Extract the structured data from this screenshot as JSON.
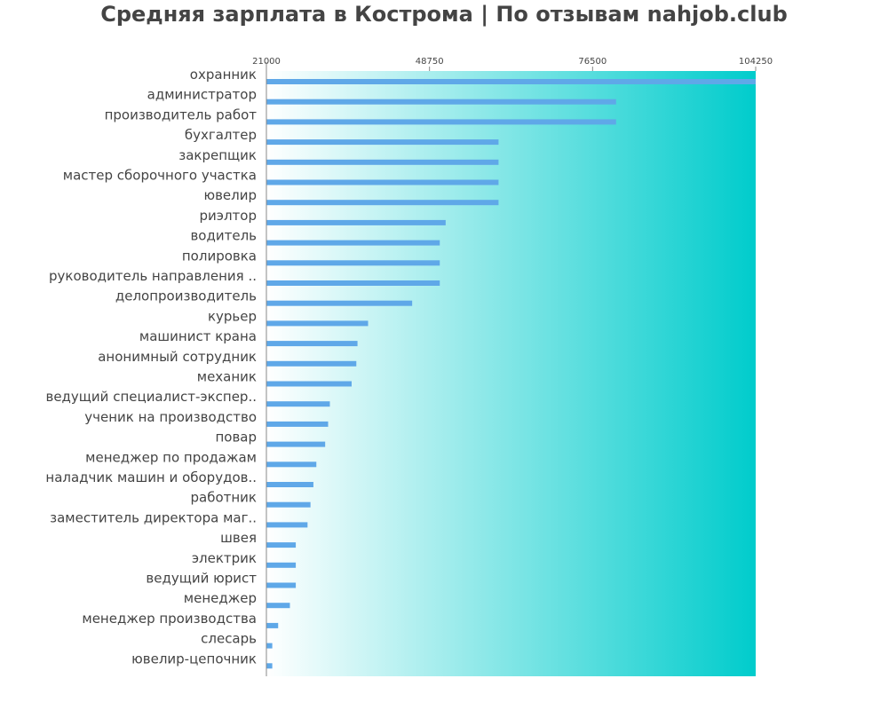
{
  "chart_data": {
    "type": "bar",
    "orientation": "horizontal",
    "title": "Средняя зарплата в Кострома | По отзывам nahjob.club",
    "xlabel": "",
    "ylabel": "",
    "xlim": [
      21000,
      104250
    ],
    "x_ticks": [
      "21000",
      "48750",
      "76500",
      "104250"
    ],
    "grid": false,
    "legend": "none",
    "bar_color": "#5fa8e8",
    "background_gradient": [
      "#ffffff",
      "#00cccc"
    ],
    "categories": [
      "охранник",
      "администратор",
      "производитель работ",
      "бухгалтер",
      "закрепщик",
      "мастер сборочного участка",
      "ювелир",
      "риэлтор",
      "водитель",
      "полировка",
      "руководитель направления ..",
      "делопроизводитель",
      "курьер",
      "машинист крана",
      "анонимный сотрудник",
      "механик",
      "ведущий специалист-экспер..",
      "ученик на производство",
      "повар",
      "менеджер по продажам",
      "наладчик машин и оборудов..",
      "работник",
      "заместитель директора маг..",
      "швея",
      "электрик",
      "ведущий юрист",
      "менеджер",
      "менеджер производства",
      "слесарь",
      "ювелир-цепочник"
    ],
    "values": [
      104250,
      80500,
      80500,
      60500,
      60500,
      60500,
      60500,
      51500,
      50500,
      50500,
      50500,
      45800,
      38300,
      36500,
      36300,
      35500,
      31800,
      31500,
      31000,
      29500,
      29000,
      28500,
      28000,
      26000,
      26000,
      26000,
      25000,
      23000,
      22000,
      22000
    ]
  }
}
